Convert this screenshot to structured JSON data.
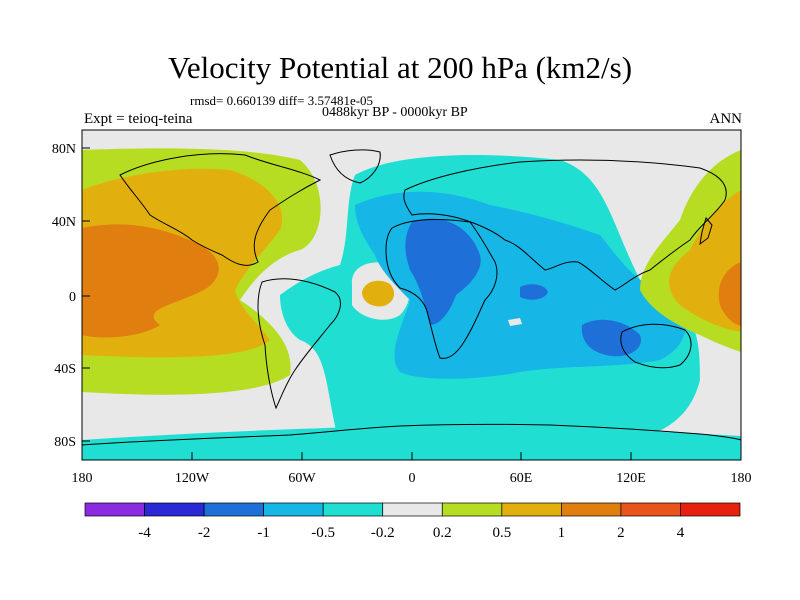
{
  "title": "Velocity Potential at 200 hPa (km2/s)",
  "stats_line": "rmsd= 0.660139 diff= 3.57481e-05",
  "period_line": "0488kyr BP - 0000kyr BP",
  "experiment_label": "Expt = teioq-teina",
  "season_label": "ANN",
  "lat_ticks": [
    "80N",
    "40N",
    "0",
    "40S",
    "80S"
  ],
  "lon_ticks": [
    "180",
    "120W",
    "60W",
    "0",
    "60E",
    "120E",
    "180"
  ],
  "colorbar": {
    "colors": [
      "#8a2be2",
      "#2929d6",
      "#1f6fd8",
      "#16b6e6",
      "#20dfd2",
      "#e8e8e8",
      "#b6dd22",
      "#e2b00e",
      "#e07e10",
      "#e8541a",
      "#e82010"
    ],
    "labels": [
      "-4",
      "-2",
      "-1",
      "-0.5",
      "-0.2",
      "0.2",
      "0.5",
      "1",
      "2",
      "4"
    ]
  },
  "map_colors": {
    "neutral": "#e8e8e8",
    "light_neg": "#20dfd2",
    "mid_neg": "#16b6e6",
    "strong_neg": "#1f6fd8",
    "light_pos": "#b6dd22",
    "mid_pos": "#e2b00e",
    "strong_pos": "#e07e10",
    "coast": "#000000"
  }
}
